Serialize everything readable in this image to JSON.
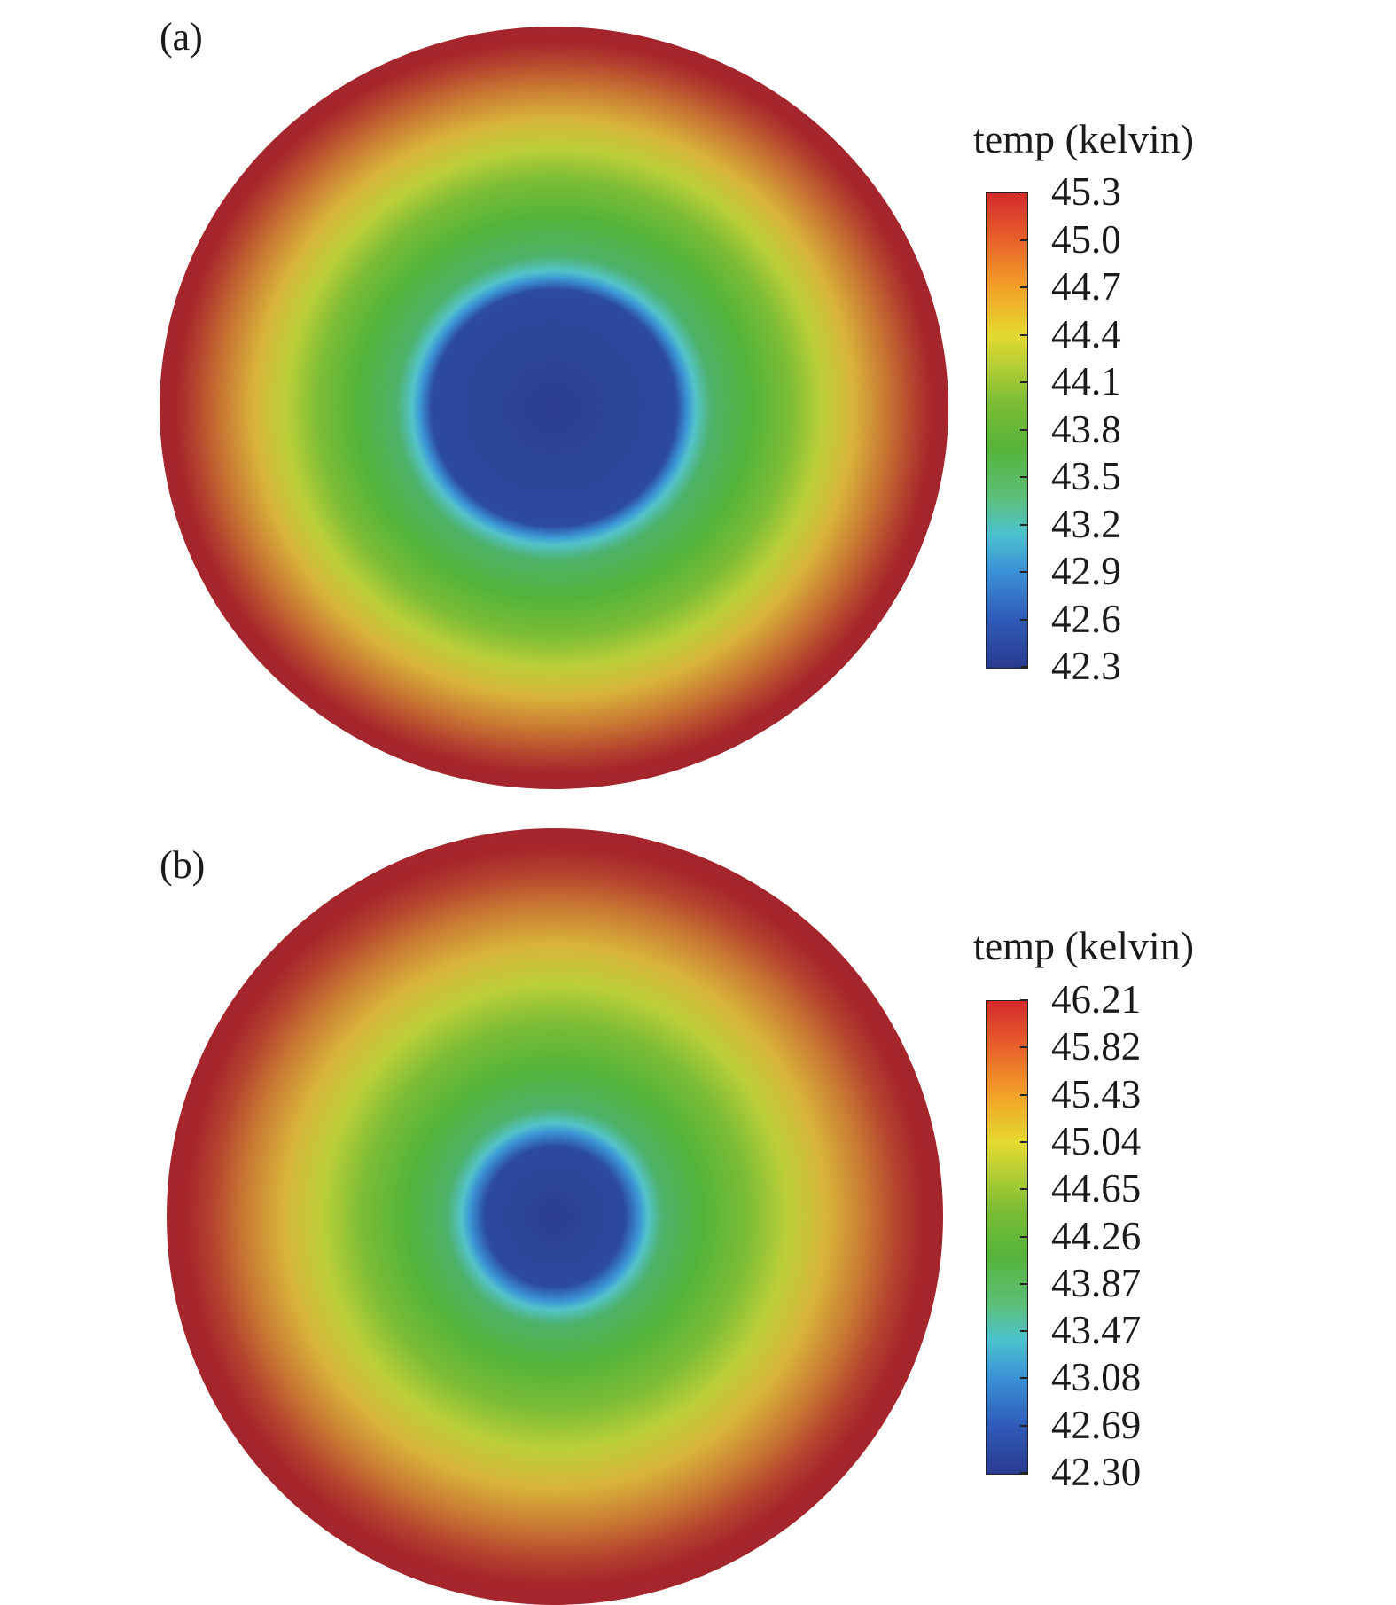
{
  "chart_data": [
    {
      "type": "heatmap",
      "panel_label": "(a)",
      "colorbar": {
        "title": "temp (kelvin)",
        "min": 42.3,
        "max": 45.3,
        "ticks": [
          "45.3",
          "45.0",
          "44.7",
          "44.4",
          "44.1",
          "43.8",
          "43.5",
          "43.2",
          "42.9",
          "42.6",
          "42.3"
        ]
      },
      "colormap": [
        "#2a3b8f",
        "#3a8fd6",
        "#4bc2cf",
        "#55b43a",
        "#b8cf35",
        "#e3d92f",
        "#f2a227",
        "#d42a2c",
        "#a6262c"
      ],
      "field": {
        "pattern": "radial",
        "center_value": 42.3,
        "edge_value": 45.3
      }
    },
    {
      "type": "heatmap",
      "panel_label": "(b)",
      "colorbar": {
        "title": "temp (kelvin)",
        "min": 42.3,
        "max": 46.21,
        "ticks": [
          "46.21",
          "45.82",
          "45.43",
          "45.04",
          "44.65",
          "44.26",
          "43.87",
          "43.47",
          "43.08",
          "42.69",
          "42.30"
        ]
      },
      "colormap": [
        "#2a3b8f",
        "#3a8fd6",
        "#4bc2cf",
        "#55b43a",
        "#b8cf35",
        "#e3d92f",
        "#f2a227",
        "#d42a2c",
        "#a6262c"
      ],
      "field": {
        "pattern": "radial",
        "center_value": 42.3,
        "edge_value": 46.21
      }
    }
  ]
}
